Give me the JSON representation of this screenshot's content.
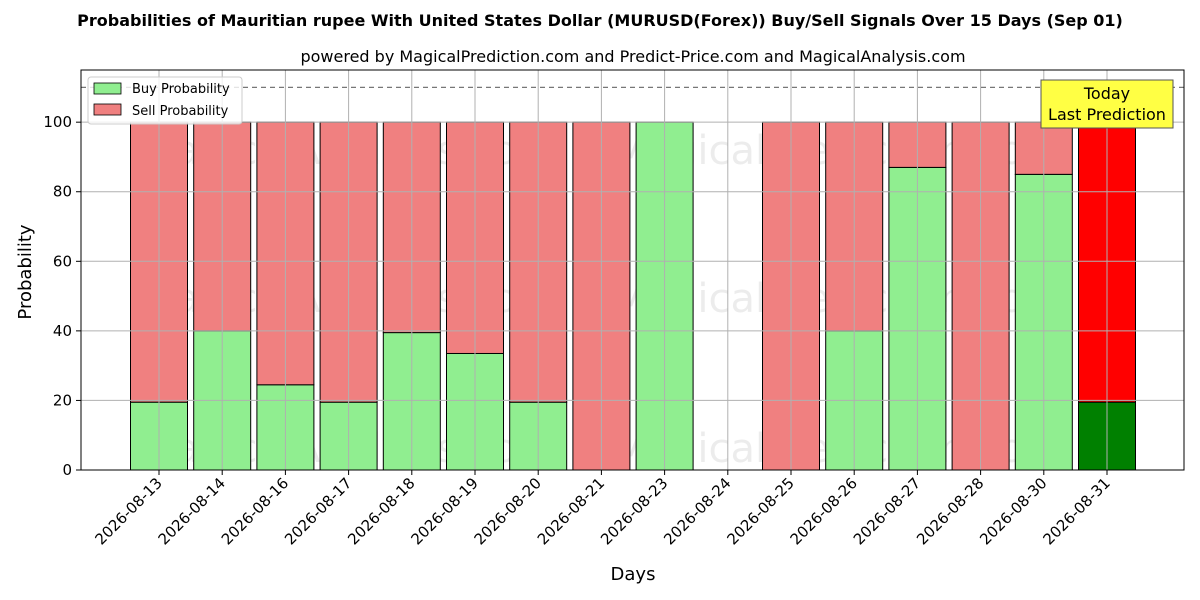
{
  "chart_data": {
    "type": "bar",
    "stacked": true,
    "title": "Probabilities of Mauritian rupee With United States Dollar (MURUSD(Forex)) Buy/Sell Signals Over 15 Days (Sep 01)",
    "subtitle": "powered by MagicalPrediction.com and Predict-Price.com and MagicalAnalysis.com",
    "xlabel": "Days",
    "ylabel": "Probability",
    "ylim": [
      0,
      115
    ],
    "yticks": [
      0,
      20,
      40,
      60,
      80,
      100
    ],
    "grid": true,
    "legend_position": "top-left",
    "reference_line": 110,
    "categories": [
      "2026-08-13",
      "2026-08-14",
      "2026-08-16",
      "2026-08-17",
      "2026-08-18",
      "2026-08-19",
      "2026-08-20",
      "2026-08-21",
      "2026-08-23",
      "2026-08-24",
      "2026-08-25",
      "2026-08-26",
      "2026-08-27",
      "2026-08-28",
      "2026-08-30",
      "2026-08-31"
    ],
    "series": [
      {
        "name": "Buy Probability",
        "color": "#90ee90",
        "values": [
          19.5,
          40,
          24.5,
          19.5,
          39.5,
          33.5,
          19.5,
          0,
          100,
          0,
          0,
          40,
          87,
          0,
          85,
          19.5
        ]
      },
      {
        "name": "Sell Probability",
        "color": "#f08080",
        "values": [
          80.5,
          60,
          75.5,
          80.5,
          60.5,
          66.5,
          80.5,
          100,
          0,
          0,
          100,
          60,
          13,
          100,
          15,
          80.5
        ]
      }
    ],
    "highlight": {
      "index": 15,
      "buy_color": "#008000",
      "sell_color": "#ff0000"
    },
    "annotation": {
      "line1": "Today",
      "line2": "Last Prediction",
      "color": "#ffff44"
    },
    "watermarks": [
      "MagicalAnalysis.com",
      "MagicalPrediction.com"
    ]
  }
}
